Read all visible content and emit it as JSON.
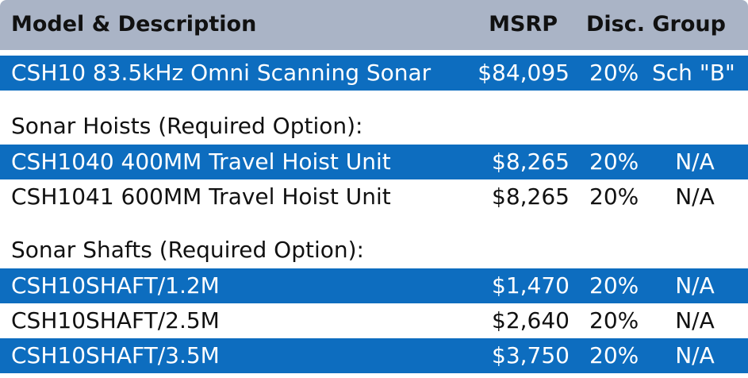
{
  "header": {
    "model": "Model & Description",
    "msrp": "MSRP",
    "disc_group": "Disc. Group"
  },
  "main_item": {
    "description": "CSH10 83.5kHz Omni Scanning Sonar",
    "msrp": "$84,095",
    "discount": "20%",
    "group": "Sch \"B\""
  },
  "hoists": {
    "label": "Sonar Hoists (Required Option):",
    "rows": [
      {
        "description": "CSH1040 400MM Travel Hoist Unit",
        "msrp": "$8,265",
        "discount": "20%",
        "group": "N/A"
      },
      {
        "description": "CSH1041 600MM Travel Hoist Unit",
        "msrp": "$8,265",
        "discount": "20%",
        "group": "N/A"
      }
    ]
  },
  "shafts": {
    "label": "Sonar Shafts (Required Option):",
    "rows": [
      {
        "description": "CSH10SHAFT/1.2M",
        "msrp": "$1,470",
        "discount": "20%",
        "group": "N/A"
      },
      {
        "description": "CSH10SHAFT/2.5M",
        "msrp": "$2,640",
        "discount": "20%",
        "group": "N/A"
      },
      {
        "description": "CSH10SHAFT/3.5M",
        "msrp": "$3,750",
        "discount": "20%",
        "group": "N/A"
      }
    ]
  },
  "colors": {
    "header_bg": "#aab4c6",
    "highlight_bg": "#0d6dbf"
  }
}
